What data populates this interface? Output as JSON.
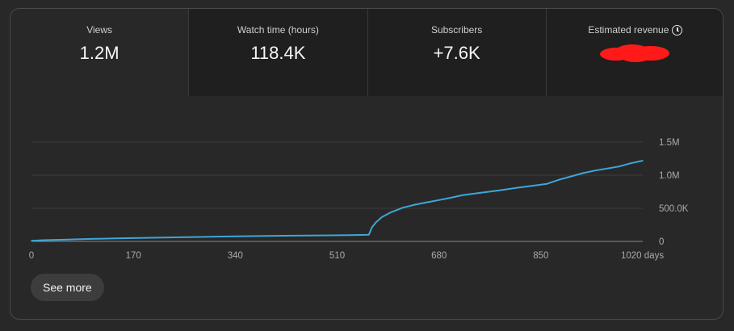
{
  "tabs": [
    {
      "label": "Views",
      "value": "1.2M",
      "selected": true
    },
    {
      "label": "Watch time (hours)",
      "value": "118.4K",
      "selected": false
    },
    {
      "label": "Subscribers",
      "value": "+7.6K",
      "selected": false
    },
    {
      "label": "Estimated revenue",
      "value": "",
      "selected": false,
      "icon": "clock-icon",
      "redacted": true,
      "redaction_color": "#ff1a1a"
    }
  ],
  "see_more_label": "See more",
  "colors": {
    "line": "#3ea6d8",
    "grid": "#3d3d3d",
    "axis": "#8a8a8a",
    "tick_text": "#aaaaaa"
  },
  "chart_data": {
    "type": "line",
    "title": "",
    "xlabel": "",
    "ylabel": "",
    "x_tick_labels": [
      "0",
      "170",
      "340",
      "510",
      "680",
      "850",
      "1020 days"
    ],
    "x_ticks": [
      0,
      170,
      340,
      510,
      680,
      850,
      1020
    ],
    "y_tick_labels": [
      "0",
      "500.0K",
      "1.0M",
      "1.5M"
    ],
    "y_ticks": [
      0,
      500000,
      1000000,
      1500000
    ],
    "xlim": [
      0,
      1020
    ],
    "ylim": [
      0,
      1500000
    ],
    "grid": true,
    "legend": "none",
    "series": [
      {
        "x": [
          0,
          20,
          60,
          100,
          140,
          170,
          200,
          250,
          300,
          340,
          380,
          420,
          460,
          500,
          530,
          550,
          563,
          568,
          575,
          585,
          600,
          620,
          640,
          660,
          680,
          700,
          720,
          750,
          780,
          810,
          840,
          860,
          880,
          900,
          920,
          940,
          960,
          980,
          1000,
          1020
        ],
        "y": [
          10000,
          18000,
          28000,
          38000,
          45000,
          50000,
          55000,
          62000,
          70000,
          75000,
          80000,
          85000,
          88000,
          92000,
          95000,
          98000,
          100000,
          210000,
          290000,
          370000,
          440000,
          510000,
          555000,
          590000,
          625000,
          660000,
          700000,
          735000,
          770000,
          810000,
          845000,
          870000,
          930000,
          980000,
          1030000,
          1070000,
          1100000,
          1130000,
          1180000,
          1220000
        ]
      }
    ]
  }
}
